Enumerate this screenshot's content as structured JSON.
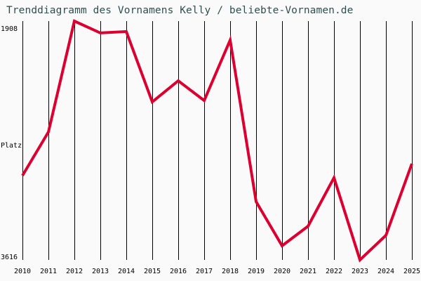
{
  "title": "Trenddiagramm des Vornamens Kelly / beliebte-Vornamen.de",
  "colors": {
    "background": "#fafafa",
    "title": "#2f4f4f",
    "line": "#dc0030",
    "grid": "#000000"
  },
  "axis": {
    "y_top_label": "1908",
    "y_mid_label": "Platz",
    "y_bottom_label": "3616"
  },
  "chart_data": {
    "type": "line",
    "title": "Trenddiagramm des Vornamens Kelly / beliebte-Vornamen.de",
    "xlabel": "",
    "ylabel": "Platz",
    "ylim": [
      3616,
      1908
    ],
    "y_inverted": true,
    "grid": {
      "vertical": true,
      "horizontal": false
    },
    "categories": [
      "2010",
      "2011",
      "2012",
      "2013",
      "2014",
      "2015",
      "2016",
      "2017",
      "2018",
      "2019",
      "2020",
      "2021",
      "2022",
      "2023",
      "2024",
      "2025"
    ],
    "series": [
      {
        "name": "Kelly",
        "values": [
          3013,
          2701,
          1908,
          1993,
          1983,
          2486,
          2335,
          2476,
          2044,
          3199,
          3515,
          3375,
          3028,
          3616,
          3440,
          2928
        ]
      }
    ]
  }
}
